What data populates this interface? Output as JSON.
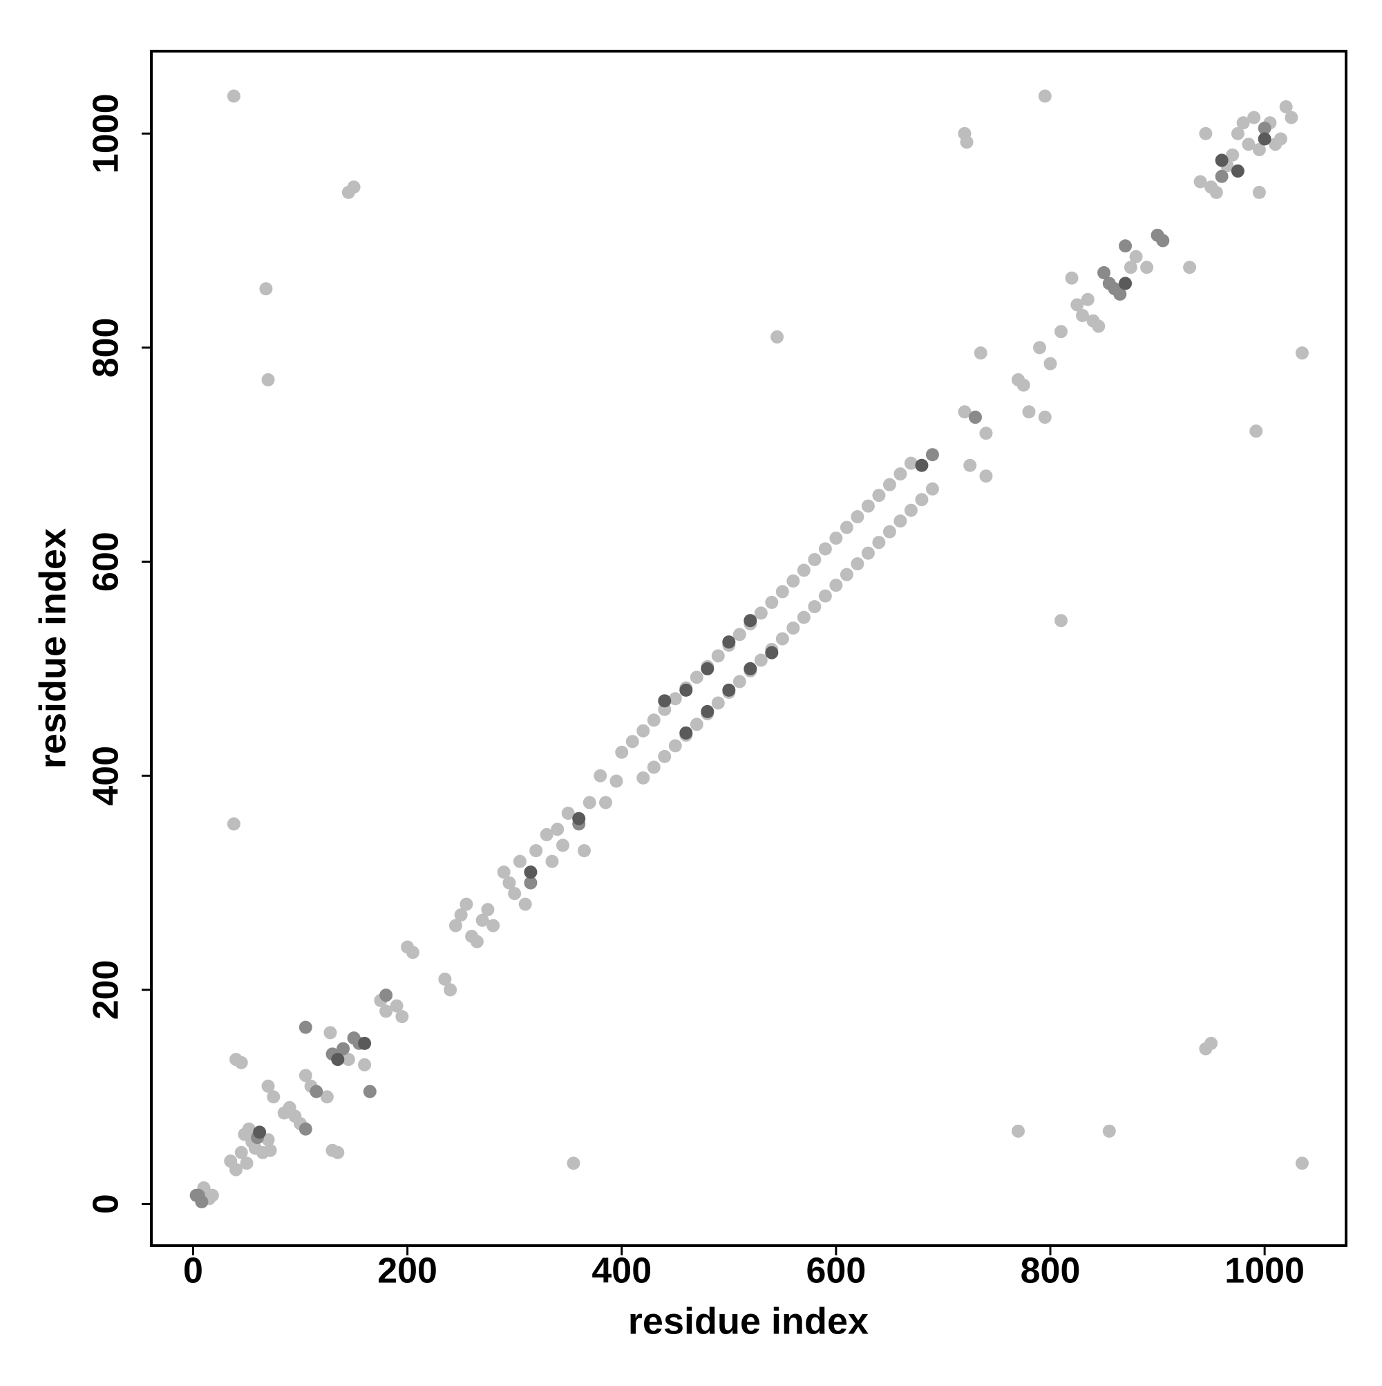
{
  "chart_data": {
    "type": "scatter",
    "x_label": "residue index",
    "y_label": "residue index",
    "xlim": [
      -39,
      1076
    ],
    "ylim": [
      -39,
      1077
    ],
    "xticks": [
      0,
      200,
      400,
      600,
      800,
      1000
    ],
    "yticks": [
      0,
      200,
      400,
      600,
      800,
      1000
    ],
    "series": [
      {
        "color": "#bdbdbd",
        "x": [
          10,
          12,
          15,
          18,
          35,
          40,
          45,
          50,
          55,
          58,
          65,
          70,
          72,
          48,
          52,
          40,
          45,
          75,
          70,
          85,
          90,
          95,
          100,
          105,
          110,
          125,
          130,
          135,
          128,
          145,
          160,
          175,
          180,
          190,
          195,
          200,
          205,
          235,
          240,
          245,
          250,
          255,
          260,
          265,
          270,
          275,
          280,
          290,
          295,
          300,
          305,
          310,
          320,
          330,
          335,
          340,
          345,
          350,
          370,
          365,
          380,
          385,
          395,
          400,
          410,
          420,
          430,
          440,
          450,
          460,
          470,
          480,
          490,
          500,
          510,
          520,
          530,
          540,
          550,
          560,
          570,
          580,
          590,
          600,
          610,
          620,
          630,
          640,
          650,
          660,
          670,
          420,
          430,
          440,
          450,
          460,
          470,
          480,
          490,
          500,
          510,
          520,
          530,
          540,
          550,
          560,
          570,
          580,
          590,
          600,
          610,
          620,
          630,
          640,
          650,
          660,
          670,
          680,
          690,
          720,
          725,
          730,
          740,
          740,
          735,
          770,
          775,
          780,
          790,
          795,
          800,
          810,
          820,
          825,
          830,
          835,
          840,
          845,
          875,
          880,
          890,
          930,
          940,
          945,
          950,
          955,
          965,
          970,
          975,
          980,
          985,
          990,
          995,
          1005,
          1010,
          1015,
          1020,
          1025,
          995,
          720,
          38,
          38,
          355,
          1035,
          145,
          150,
          945,
          950,
          68,
          70,
          855,
          770,
          545,
          810,
          795,
          1035,
          992,
          722
        ],
        "y": [
          15,
          10,
          5,
          8,
          40,
          32,
          48,
          38,
          58,
          52,
          48,
          60,
          50,
          65,
          70,
          135,
          132,
          100,
          110,
          85,
          90,
          82,
          75,
          120,
          110,
          100,
          50,
          48,
          160,
          135,
          130,
          190,
          180,
          185,
          175,
          240,
          235,
          210,
          200,
          260,
          270,
          280,
          250,
          245,
          265,
          275,
          260,
          310,
          300,
          290,
          320,
          280,
          330,
          345,
          320,
          350,
          335,
          365,
          375,
          330,
          400,
          375,
          395,
          422,
          432,
          442,
          452,
          462,
          472,
          482,
          492,
          502,
          512,
          522,
          532,
          542,
          552,
          562,
          572,
          582,
          592,
          602,
          612,
          622,
          632,
          642,
          652,
          662,
          672,
          682,
          692,
          398,
          408,
          418,
          428,
          438,
          448,
          458,
          468,
          478,
          488,
          498,
          508,
          518,
          528,
          538,
          548,
          558,
          568,
          578,
          588,
          598,
          608,
          618,
          628,
          638,
          648,
          658,
          668,
          740,
          690,
          735,
          720,
          680,
          795,
          770,
          765,
          740,
          800,
          735,
          785,
          815,
          865,
          840,
          830,
          845,
          825,
          820,
          875,
          885,
          875,
          875,
          955,
          1000,
          950,
          945,
          970,
          980,
          1000,
          1010,
          990,
          1015,
          985,
          1010,
          990,
          995,
          1025,
          1015,
          945,
          1000,
          1035,
          355,
          38,
          38,
          945,
          950,
          145,
          150,
          855,
          770,
          68,
          68,
          810,
          545,
          1035,
          795,
          722,
          992
        ]
      },
      {
        "color": "#8a8a8a",
        "x": [
          5,
          8,
          3,
          60,
          105,
          105,
          115,
          130,
          140,
          150,
          155,
          165,
          180,
          315,
          360,
          850,
          855,
          860,
          865,
          870,
          900,
          905,
          960,
          1000,
          730,
          690
        ],
        "y": [
          8,
          2,
          8,
          62,
          70,
          165,
          105,
          140,
          145,
          155,
          150,
          105,
          195,
          300,
          355,
          870,
          860,
          855,
          850,
          895,
          905,
          900,
          960,
          1005,
          735,
          700
        ]
      },
      {
        "color": "#5a5a5a",
        "x": [
          62,
          135,
          160,
          315,
          360,
          440,
          460,
          480,
          500,
          520,
          460,
          480,
          500,
          520,
          540,
          870,
          960,
          975,
          1000,
          680
        ],
        "y": [
          67,
          135,
          150,
          310,
          360,
          470,
          480,
          500,
          525,
          545,
          440,
          460,
          480,
          500,
          515,
          860,
          975,
          965,
          995,
          690
        ]
      }
    ]
  }
}
